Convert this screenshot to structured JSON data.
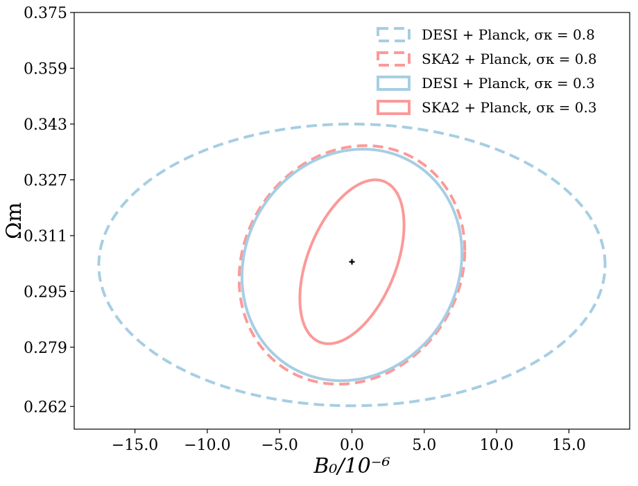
{
  "chart_data": {
    "type": "contour",
    "xlabel": "B₀/10⁻⁶",
    "ylabel": "Ωm",
    "xlim": [
      -19.2,
      19.2
    ],
    "ylim": [
      0.2555,
      0.375
    ],
    "xticks": [
      -15.0,
      -10.0,
      -5.0,
      0.0,
      5.0,
      10.0,
      15.0
    ],
    "xtick_labels": [
      "−15.0",
      "−10.0",
      "−5.0",
      "0.0",
      "5.0",
      "10.0",
      "15.0"
    ],
    "yticks": [
      0.262,
      0.279,
      0.295,
      0.311,
      0.327,
      0.343,
      0.359,
      0.375
    ],
    "ytick_labels": [
      "0.262",
      "0.279",
      "0.295",
      "0.311",
      "0.327",
      "0.343",
      "0.359",
      "0.375"
    ],
    "fiducial": {
      "x": 0.0,
      "y": 0.3035
    },
    "legend_position": "upper right",
    "series": [
      {
        "name": "DESI + Planck, σκ = 0.8",
        "color": "#a6cee3",
        "style": "dashed",
        "ellipse": {
          "cx": 0.0,
          "cy": 0.3026,
          "x_extent": 17.5,
          "y_extent": 0.0404,
          "correlation": 0.0
        }
      },
      {
        "name": "SKA2 + Planck, σκ = 0.8",
        "color": "#fb9a99",
        "style": "dashed",
        "ellipse": {
          "cx": 0.0,
          "cy": 0.3026,
          "x_extent": 7.8,
          "y_extent": 0.0342,
          "correlation": 0.12
        }
      },
      {
        "name": "DESI + Planck, σκ = 0.3",
        "color": "#a6cee3",
        "style": "solid",
        "ellipse": {
          "cx": 0.0,
          "cy": 0.3026,
          "x_extent": 7.6,
          "y_extent": 0.0332,
          "correlation": 0.1
        }
      },
      {
        "name": "SKA2 + Planck, σκ = 0.3",
        "color": "#fb9a99",
        "style": "solid",
        "ellipse": {
          "cx": 0.0,
          "cy": 0.3035,
          "x_extent": 3.6,
          "y_extent": 0.0235,
          "correlation": 0.45
        }
      }
    ]
  }
}
